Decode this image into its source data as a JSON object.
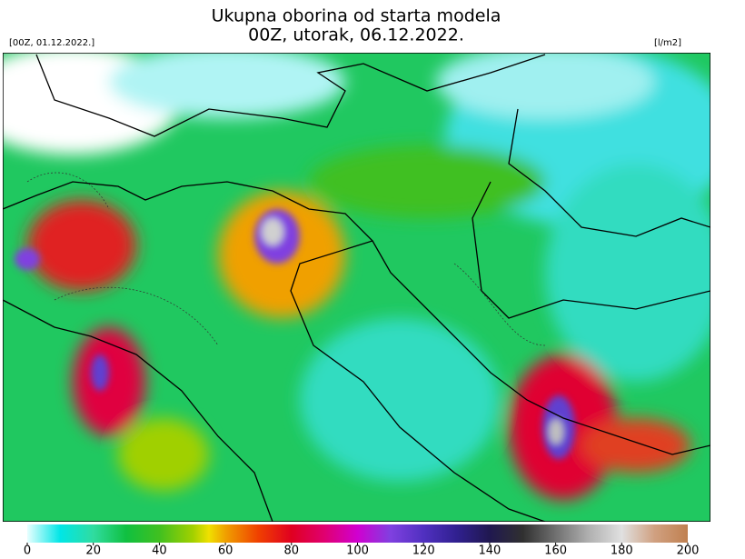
{
  "header": {
    "title_line1": "Ukupna oborina od starta modela",
    "title_line2": "00Z, utorak, 06.12.2022.",
    "run_label": "[00Z, 01.12.2022.]",
    "unit_label": "[l/m2]"
  },
  "colorbar": {
    "lim": [
      0,
      200
    ],
    "ticks": [
      0,
      20,
      40,
      60,
      80,
      100,
      120,
      140,
      160,
      180,
      200
    ]
  }
}
